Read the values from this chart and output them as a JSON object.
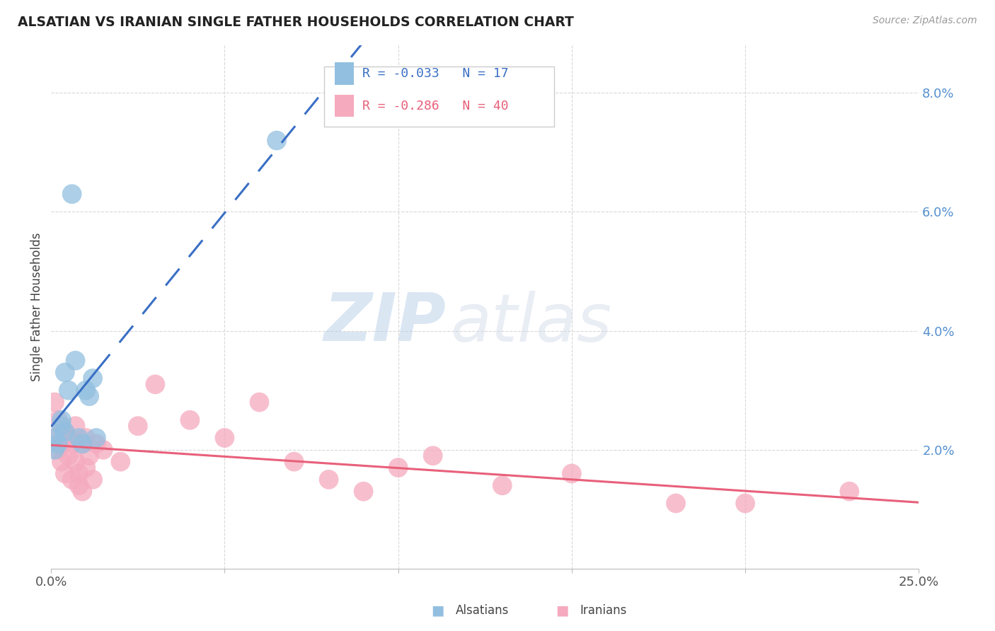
{
  "title": "ALSATIAN VS IRANIAN SINGLE FATHER HOUSEHOLDS CORRELATION CHART",
  "source": "Source: ZipAtlas.com",
  "ylabel": "Single Father Households",
  "xlim": [
    0.0,
    0.25
  ],
  "ylim": [
    0.0,
    0.088
  ],
  "yticks": [
    0.0,
    0.02,
    0.04,
    0.06,
    0.08
  ],
  "ytick_labels": [
    "",
    "2.0%",
    "4.0%",
    "6.0%",
    "8.0%"
  ],
  "xticks": [
    0.0,
    0.05,
    0.1,
    0.15,
    0.2,
    0.25
  ],
  "xtick_labels": [
    "0.0%",
    "",
    "",
    "",
    "",
    "25.0%"
  ],
  "alsatian_R": -0.033,
  "alsatian_N": 17,
  "iranian_R": -0.286,
  "iranian_N": 40,
  "alsatian_color": "#92bfe0",
  "iranian_color": "#f5aabe",
  "alsatian_line_color": "#3a6fc4",
  "iranian_line_color": "#e8607a",
  "alsatian_x": [
    0.001,
    0.001,
    0.002,
    0.003,
    0.003,
    0.004,
    0.004,
    0.005,
    0.006,
    0.007,
    0.008,
    0.009,
    0.01,
    0.011,
    0.012,
    0.013,
    0.065
  ],
  "alsatian_y": [
    0.02,
    0.022,
    0.021,
    0.024,
    0.025,
    0.033,
    0.023,
    0.03,
    0.063,
    0.035,
    0.022,
    0.021,
    0.03,
    0.029,
    0.032,
    0.022,
    0.072
  ],
  "iranian_x": [
    0.001,
    0.001,
    0.002,
    0.002,
    0.003,
    0.003,
    0.004,
    0.004,
    0.005,
    0.005,
    0.006,
    0.006,
    0.007,
    0.007,
    0.008,
    0.008,
    0.009,
    0.009,
    0.01,
    0.01,
    0.011,
    0.012,
    0.013,
    0.015,
    0.02,
    0.025,
    0.03,
    0.04,
    0.05,
    0.06,
    0.07,
    0.08,
    0.09,
    0.1,
    0.11,
    0.13,
    0.15,
    0.18,
    0.2,
    0.23
  ],
  "iranian_y": [
    0.028,
    0.022,
    0.025,
    0.02,
    0.021,
    0.018,
    0.016,
    0.023,
    0.019,
    0.022,
    0.015,
    0.021,
    0.018,
    0.024,
    0.014,
    0.016,
    0.013,
    0.021,
    0.022,
    0.017,
    0.019,
    0.015,
    0.021,
    0.02,
    0.018,
    0.024,
    0.031,
    0.025,
    0.022,
    0.028,
    0.018,
    0.015,
    0.013,
    0.017,
    0.019,
    0.014,
    0.016,
    0.011,
    0.011,
    0.013
  ],
  "watermark_zip": "ZIP",
  "watermark_atlas": "atlas",
  "background_color": "#ffffff",
  "grid_color": "#d8d8d8"
}
